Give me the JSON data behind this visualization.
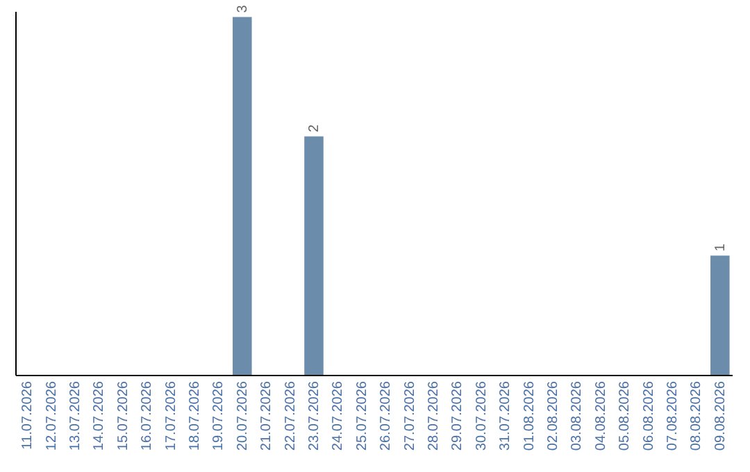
{
  "chart_data": {
    "type": "bar",
    "categories": [
      "11.07.2026",
      "12.07.2026",
      "13.07.2026",
      "14.07.2026",
      "15.07.2026",
      "16.07.2026",
      "17.07.2026",
      "18.07.2026",
      "19.07.2026",
      "20.07.2026",
      "21.07.2026",
      "22.07.2026",
      "23.07.2026",
      "24.07.2026",
      "25.07.2026",
      "26.07.2026",
      "27.07.2026",
      "28.07.2026",
      "29.07.2026",
      "30.07.2026",
      "31.07.2026",
      "01.08.2026",
      "02.08.2026",
      "03.08.2026",
      "04.08.2026",
      "05.08.2026",
      "06.08.2026",
      "07.08.2026",
      "08.08.2026",
      "09.08.2026"
    ],
    "values": [
      0,
      0,
      0,
      0,
      0,
      0,
      0,
      0,
      0,
      3,
      0,
      0,
      2,
      0,
      0,
      0,
      0,
      0,
      0,
      0,
      0,
      0,
      0,
      0,
      0,
      0,
      0,
      0,
      0,
      1
    ],
    "value_labels": [
      null,
      null,
      null,
      null,
      null,
      null,
      null,
      null,
      null,
      "3",
      null,
      null,
      "2",
      null,
      null,
      null,
      null,
      null,
      null,
      null,
      null,
      null,
      null,
      null,
      null,
      null,
      null,
      null,
      null,
      "1"
    ],
    "color": "#6b8cab",
    "ylim": [
      0,
      3.05
    ],
    "tick_labels": "x",
    "grid": false
  }
}
